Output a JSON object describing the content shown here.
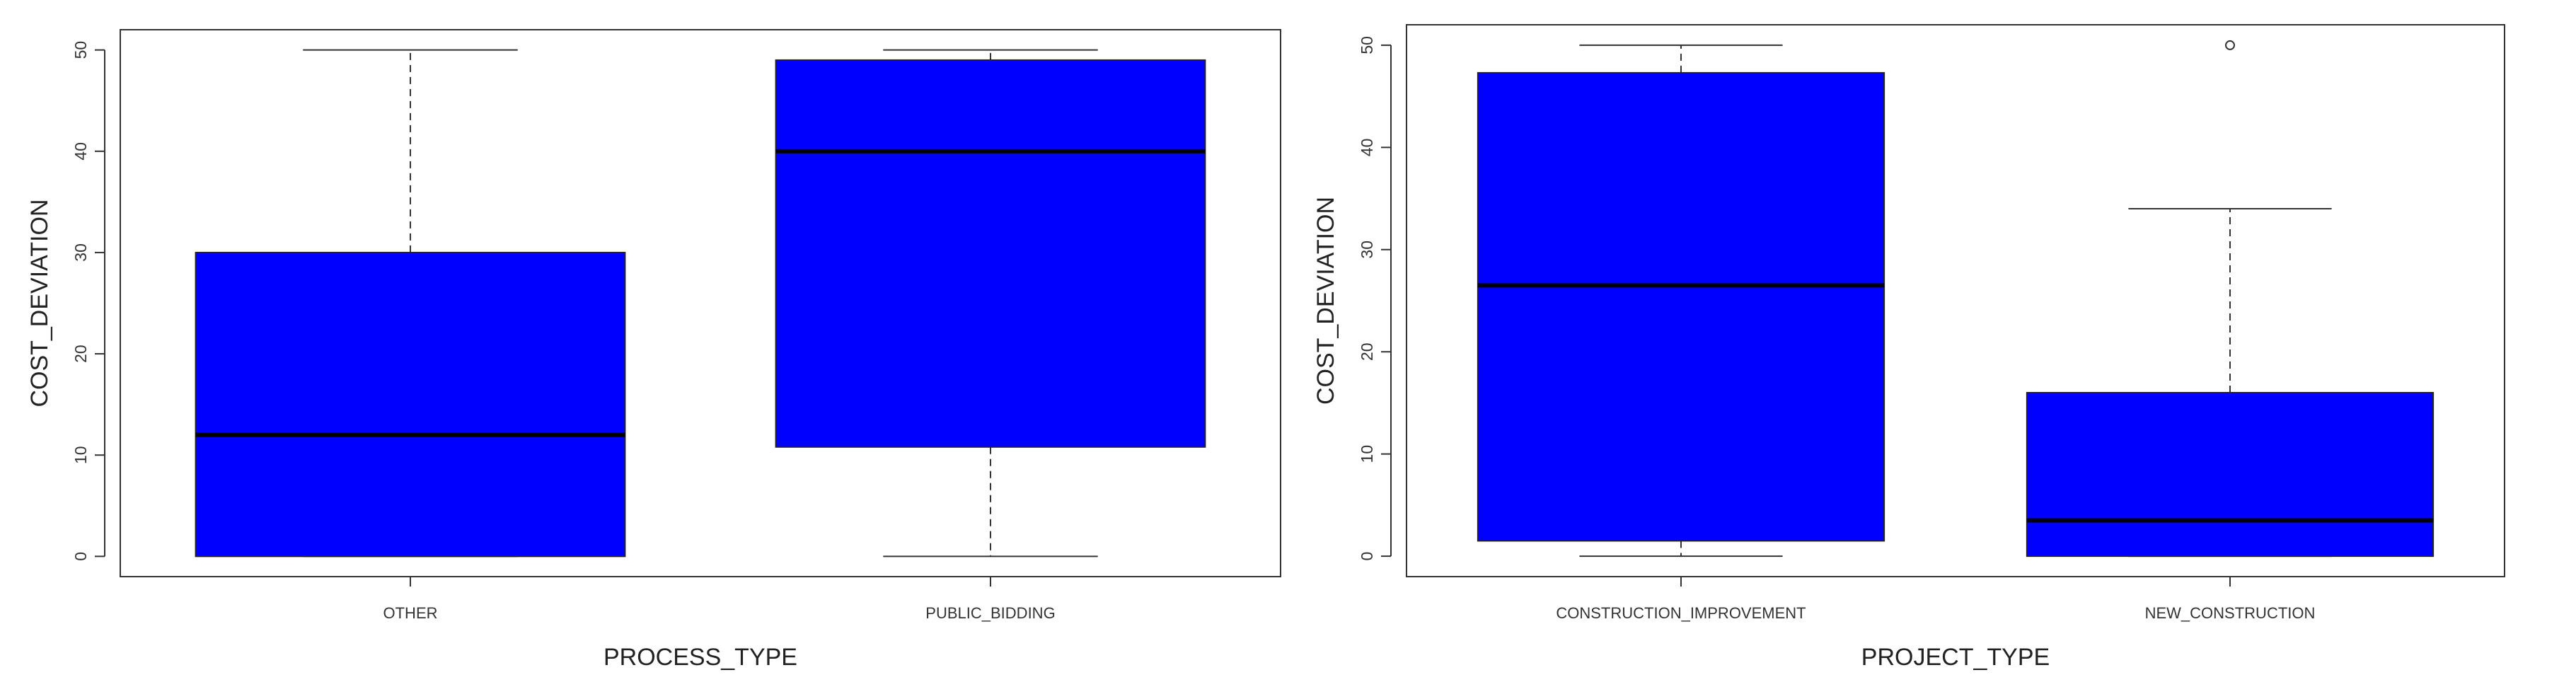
{
  "chart_data": [
    {
      "type": "boxplot",
      "xlabel": "PROCESS_TYPE",
      "ylabel": "COST_DEVIATION",
      "ylim": [
        -2,
        52
      ],
      "yticks": [
        0,
        10,
        20,
        30,
        40,
        50
      ],
      "box_color": "#0000ff",
      "categories": [
        "OTHER",
        "PUBLIC_BIDDING"
      ],
      "boxes": [
        {
          "category": "OTHER",
          "whisker_low": 0,
          "q1": 0,
          "median": 12,
          "q3": 30,
          "whisker_high": 50,
          "outliers": []
        },
        {
          "category": "PUBLIC_BIDDING",
          "whisker_low": 0,
          "q1": 10.8,
          "median": 40,
          "q3": 49,
          "whisker_high": 50,
          "outliers": []
        }
      ]
    },
    {
      "type": "boxplot",
      "xlabel": "PROJECT_TYPE",
      "ylabel": "COST_DEVIATION",
      "ylim": [
        -2,
        52
      ],
      "yticks": [
        0,
        10,
        20,
        30,
        40,
        50
      ],
      "box_color": "#0000ff",
      "categories": [
        "CONSTRUCTION_IMPROVEMENT",
        "NEW_CONSTRUCTION"
      ],
      "boxes": [
        {
          "category": "CONSTRUCTION_IMPROVEMENT",
          "whisker_low": 0,
          "q1": 1.5,
          "median": 26.5,
          "q3": 47.3,
          "whisker_high": 50,
          "outliers": []
        },
        {
          "category": "NEW_CONSTRUCTION",
          "whisker_low": 0,
          "q1": 0,
          "median": 3.5,
          "q3": 16,
          "whisker_high": 34,
          "outliers": [
            50
          ]
        }
      ]
    }
  ]
}
